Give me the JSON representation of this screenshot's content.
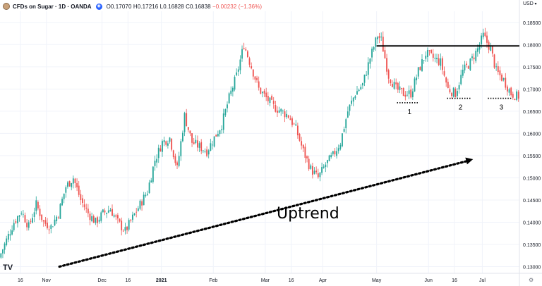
{
  "header": {
    "symbol_title": "CFDs on Sugar · 1D · OANDA",
    "open": "O0.17070",
    "high": "H0.17216",
    "low": "L0.16828",
    "close": "C0.16838",
    "change": "−0.00232 (−1.36%)",
    "currency": "USD",
    "symbol_icon": "sugar-cube-icon",
    "visibility_icon": "eye-icon"
  },
  "footer": {
    "logo_text": "TV",
    "settings_icon": "gear-icon"
  },
  "annotations": {
    "uptrend_label": "Uptrend",
    "support_labels": [
      "1",
      "2",
      "3"
    ]
  },
  "colors": {
    "up": "#26a69a",
    "down": "#ef5350",
    "resistance": "#000000",
    "grid": "#f0f3fa"
  },
  "chart_data": {
    "type": "candlestick",
    "y_axis": {
      "ticks": [
        0.185,
        0.18,
        0.175,
        0.17,
        0.165,
        0.16,
        0.155,
        0.15,
        0.145,
        0.14,
        0.135,
        0.13
      ],
      "tick_labels": [
        "0.18500",
        "0.18000",
        "0.17500",
        "0.17000",
        "0.16500",
        "0.16000",
        "0.15500",
        "0.15000",
        "0.14500",
        "0.14000",
        "0.13500",
        "0.13000"
      ],
      "range": [
        0.1285,
        0.1875
      ]
    },
    "x_axis": {
      "ticks": [
        "16",
        "Nov",
        "Dec",
        "16",
        "2021",
        "Feb",
        "Mar",
        "16",
        "Apr",
        "May",
        "Jun",
        "16",
        "Jul"
      ],
      "tick_day_index": [
        11,
        25,
        55,
        69,
        87,
        115,
        143,
        157,
        174,
        203,
        231,
        245,
        260
      ]
    },
    "day_range": [
      0,
      280
    ],
    "resistance_level": 0.1797,
    "support_levels": [
      {
        "label": "1",
        "value": 0.1669,
        "day_from": 214,
        "day_to": 226
      },
      {
        "label": "2",
        "value": 0.1679,
        "day_from": 241,
        "day_to": 254
      },
      {
        "label": "3",
        "value": 0.1679,
        "day_from": 263,
        "day_to": 276
      }
    ],
    "uptrend_arrow": {
      "from": {
        "day": 32,
        "value": 0.13
      },
      "to": {
        "day": 255,
        "value": 0.1542
      }
    },
    "anchor_prices": [
      [
        0,
        0.132
      ],
      [
        4,
        0.136
      ],
      [
        8,
        0.14
      ],
      [
        12,
        0.1425
      ],
      [
        16,
        0.139
      ],
      [
        20,
        0.144
      ],
      [
        24,
        0.14
      ],
      [
        28,
        0.139
      ],
      [
        32,
        0.142
      ],
      [
        36,
        0.148
      ],
      [
        40,
        0.15
      ],
      [
        44,
        0.145
      ],
      [
        48,
        0.142
      ],
      [
        52,
        0.14
      ],
      [
        56,
        0.142
      ],
      [
        60,
        0.143
      ],
      [
        64,
        0.14
      ],
      [
        68,
        0.138
      ],
      [
        72,
        0.141
      ],
      [
        76,
        0.144
      ],
      [
        80,
        0.147
      ],
      [
        84,
        0.154
      ],
      [
        88,
        0.158
      ],
      [
        92,
        0.159
      ],
      [
        96,
        0.152
      ],
      [
        100,
        0.164
      ],
      [
        104,
        0.158
      ],
      [
        108,
        0.157
      ],
      [
        112,
        0.156
      ],
      [
        116,
        0.159
      ],
      [
        120,
        0.162
      ],
      [
        124,
        0.168
      ],
      [
        128,
        0.173
      ],
      [
        132,
        0.18
      ],
      [
        136,
        0.175
      ],
      [
        140,
        0.17
      ],
      [
        144,
        0.168
      ],
      [
        148,
        0.166
      ],
      [
        152,
        0.165
      ],
      [
        156,
        0.164
      ],
      [
        160,
        0.161
      ],
      [
        164,
        0.156
      ],
      [
        168,
        0.152
      ],
      [
        172,
        0.15
      ],
      [
        176,
        0.153
      ],
      [
        180,
        0.155
      ],
      [
        184,
        0.158
      ],
      [
        188,
        0.165
      ],
      [
        192,
        0.169
      ],
      [
        196,
        0.171
      ],
      [
        200,
        0.177
      ],
      [
        204,
        0.182
      ],
      [
        206,
        0.181
      ],
      [
        210,
        0.173
      ],
      [
        214,
        0.17
      ],
      [
        218,
        0.169
      ],
      [
        222,
        0.169
      ],
      [
        226,
        0.174
      ],
      [
        230,
        0.178
      ],
      [
        234,
        0.177
      ],
      [
        238,
        0.176
      ],
      [
        242,
        0.17
      ],
      [
        246,
        0.169
      ],
      [
        250,
        0.174
      ],
      [
        254,
        0.176
      ],
      [
        258,
        0.179
      ],
      [
        261,
        0.182
      ],
      [
        265,
        0.179
      ],
      [
        268,
        0.174
      ],
      [
        272,
        0.172
      ],
      [
        276,
        0.169
      ],
      [
        279,
        0.1684
      ]
    ],
    "title": "",
    "xlabel": "",
    "ylabel": ""
  }
}
